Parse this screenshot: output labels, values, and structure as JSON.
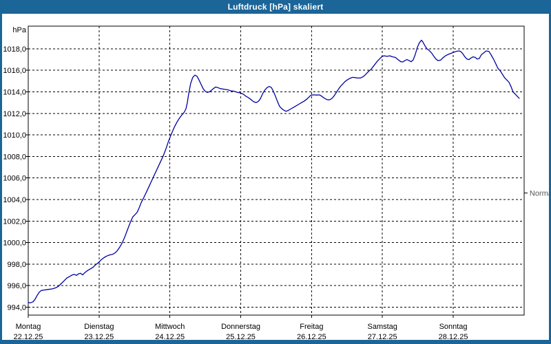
{
  "window": {
    "title": "Luftdruck [hPa] skaliert"
  },
  "colors": {
    "chrome": "#1B6598",
    "plot_bg": "#FFFFFF",
    "line": "#0000A0",
    "grid": "#000000",
    "frame": "#000000",
    "text": "#000000",
    "normal_text": "#555555"
  },
  "chart_data": {
    "type": "line",
    "title": "Luftdruck [hPa] skaliert",
    "y_unit_label": "hPa",
    "x_unit": "days since Montag 22.12.25 00:00",
    "ylim": [
      993.3,
      1020.3
    ],
    "x_range_days": [
      0,
      7
    ],
    "grid": true,
    "y_ticks": [
      {
        "v": 994,
        "label": "994,0"
      },
      {
        "v": 996,
        "label": "996,0"
      },
      {
        "v": 998,
        "label": "998,0"
      },
      {
        "v": 1000,
        "label": "1000,0"
      },
      {
        "v": 1002,
        "label": "1002,0"
      },
      {
        "v": 1004,
        "label": "1004,0"
      },
      {
        "v": 1006,
        "label": "1006,0"
      },
      {
        "v": 1008,
        "label": "1008,0"
      },
      {
        "v": 1010,
        "label": "1010,0"
      },
      {
        "v": 1012,
        "label": "1012,0"
      },
      {
        "v": 1014,
        "label": "1014,0"
      },
      {
        "v": 1016,
        "label": "1016,0"
      },
      {
        "v": 1018,
        "label": "1018,0"
      }
    ],
    "x_ticks": [
      {
        "day": "Montag",
        "date": "22.12.25"
      },
      {
        "day": "Dienstag",
        "date": "23.12.25"
      },
      {
        "day": "Mittwoch",
        "date": "24.12.25"
      },
      {
        "day": "Donnerstag",
        "date": "25.12.25"
      },
      {
        "day": "Freitag",
        "date": "26.12.25"
      },
      {
        "day": "Samstag",
        "date": "27.12.25"
      },
      {
        "day": "Sonntag",
        "date": "28.12.25"
      }
    ],
    "normal_marker": {
      "label": "Normal",
      "value_hpa": 1004.6,
      "side": "right"
    },
    "series": [
      {
        "name": "Luftdruck",
        "color": "#0000A0",
        "points": [
          [
            0.0,
            994.45
          ],
          [
            0.029,
            994.4
          ],
          [
            0.068,
            994.5
          ],
          [
            0.097,
            994.75
          ],
          [
            0.126,
            995.1
          ],
          [
            0.156,
            995.4
          ],
          [
            0.185,
            995.55
          ],
          [
            0.224,
            995.6
          ],
          [
            0.282,
            995.65
          ],
          [
            0.34,
            995.7
          ],
          [
            0.389,
            995.8
          ],
          [
            0.428,
            995.95
          ],
          [
            0.467,
            996.2
          ],
          [
            0.506,
            996.45
          ],
          [
            0.544,
            996.7
          ],
          [
            0.583,
            996.85
          ],
          [
            0.622,
            997.0
          ],
          [
            0.651,
            997.05
          ],
          [
            0.681,
            996.95
          ],
          [
            0.71,
            997.1
          ],
          [
            0.739,
            997.15
          ],
          [
            0.768,
            997.0
          ],
          [
            0.797,
            997.2
          ],
          [
            0.836,
            997.4
          ],
          [
            0.875,
            997.55
          ],
          [
            0.914,
            997.7
          ],
          [
            0.953,
            997.95
          ],
          [
            0.992,
            998.15
          ],
          [
            1.031,
            998.4
          ],
          [
            1.069,
            998.6
          ],
          [
            1.108,
            998.75
          ],
          [
            1.147,
            998.85
          ],
          [
            1.186,
            998.9
          ],
          [
            1.215,
            999.0
          ],
          [
            1.245,
            999.15
          ],
          [
            1.274,
            999.4
          ],
          [
            1.303,
            999.7
          ],
          [
            1.332,
            1000.05
          ],
          [
            1.361,
            1000.5
          ],
          [
            1.39,
            1001.0
          ],
          [
            1.419,
            1001.5
          ],
          [
            1.449,
            1002.0
          ],
          [
            1.478,
            1002.4
          ],
          [
            1.507,
            1002.6
          ],
          [
            1.536,
            1002.8
          ],
          [
            1.565,
            1003.2
          ],
          [
            1.594,
            1003.7
          ],
          [
            1.633,
            1004.2
          ],
          [
            1.672,
            1004.75
          ],
          [
            1.711,
            1005.3
          ],
          [
            1.75,
            1005.85
          ],
          [
            1.789,
            1006.4
          ],
          [
            1.828,
            1006.95
          ],
          [
            1.867,
            1007.5
          ],
          [
            1.906,
            1008.05
          ],
          [
            1.944,
            1008.7
          ],
          [
            1.983,
            1009.45
          ],
          [
            2.022,
            1010.1
          ],
          [
            2.061,
            1010.7
          ],
          [
            2.1,
            1011.2
          ],
          [
            2.139,
            1011.6
          ],
          [
            2.168,
            1011.85
          ],
          [
            2.197,
            1012.05
          ],
          [
            2.226,
            1012.4
          ],
          [
            2.246,
            1013.0
          ],
          [
            2.265,
            1013.8
          ],
          [
            2.294,
            1014.8
          ],
          [
            2.323,
            1015.35
          ],
          [
            2.353,
            1015.55
          ],
          [
            2.382,
            1015.45
          ],
          [
            2.411,
            1015.1
          ],
          [
            2.44,
            1014.7
          ],
          [
            2.469,
            1014.3
          ],
          [
            2.498,
            1014.05
          ],
          [
            2.528,
            1013.95
          ],
          [
            2.557,
            1014.0
          ],
          [
            2.586,
            1014.15
          ],
          [
            2.615,
            1014.3
          ],
          [
            2.644,
            1014.45
          ],
          [
            2.673,
            1014.4
          ],
          [
            2.712,
            1014.3
          ],
          [
            2.761,
            1014.25
          ],
          [
            2.81,
            1014.2
          ],
          [
            2.858,
            1014.1
          ],
          [
            2.907,
            1014.05
          ],
          [
            2.955,
            1013.95
          ],
          [
            2.994,
            1013.9
          ],
          [
            3.033,
            1013.8
          ],
          [
            3.072,
            1013.6
          ],
          [
            3.111,
            1013.45
          ],
          [
            3.15,
            1013.25
          ],
          [
            3.179,
            1013.1
          ],
          [
            3.218,
            1013.0
          ],
          [
            3.247,
            1013.1
          ],
          [
            3.276,
            1013.35
          ],
          [
            3.315,
            1013.9
          ],
          [
            3.344,
            1014.2
          ],
          [
            3.373,
            1014.4
          ],
          [
            3.403,
            1014.5
          ],
          [
            3.432,
            1014.4
          ],
          [
            3.461,
            1014.05
          ],
          [
            3.49,
            1013.6
          ],
          [
            3.519,
            1013.1
          ],
          [
            3.548,
            1012.65
          ],
          [
            3.577,
            1012.45
          ],
          [
            3.607,
            1012.3
          ],
          [
            3.636,
            1012.2
          ],
          [
            3.665,
            1012.25
          ],
          [
            3.704,
            1012.4
          ],
          [
            3.743,
            1012.55
          ],
          [
            3.782,
            1012.7
          ],
          [
            3.82,
            1012.85
          ],
          [
            3.859,
            1013.0
          ],
          [
            3.898,
            1013.15
          ],
          [
            3.937,
            1013.35
          ],
          [
            3.976,
            1013.6
          ],
          [
            3.996,
            1013.7
          ],
          [
            4.035,
            1013.72
          ],
          [
            4.073,
            1013.7
          ],
          [
            4.112,
            1013.72
          ],
          [
            4.142,
            1013.6
          ],
          [
            4.171,
            1013.45
          ],
          [
            4.21,
            1013.3
          ],
          [
            4.239,
            1013.25
          ],
          [
            4.268,
            1013.3
          ],
          [
            4.297,
            1013.45
          ],
          [
            4.326,
            1013.7
          ],
          [
            4.355,
            1014.0
          ],
          [
            4.385,
            1014.3
          ],
          [
            4.414,
            1014.55
          ],
          [
            4.443,
            1014.75
          ],
          [
            4.472,
            1014.95
          ],
          [
            4.501,
            1015.1
          ],
          [
            4.54,
            1015.25
          ],
          [
            4.579,
            1015.35
          ],
          [
            4.618,
            1015.32
          ],
          [
            4.657,
            1015.28
          ],
          [
            4.696,
            1015.3
          ],
          [
            4.725,
            1015.4
          ],
          [
            4.754,
            1015.55
          ],
          [
            4.783,
            1015.75
          ],
          [
            4.812,
            1015.95
          ],
          [
            4.841,
            1016.1
          ],
          [
            4.871,
            1016.35
          ],
          [
            4.9,
            1016.6
          ],
          [
            4.929,
            1016.85
          ],
          [
            4.958,
            1017.05
          ],
          [
            4.997,
            1017.3
          ],
          [
            5.026,
            1017.35
          ],
          [
            5.065,
            1017.3
          ],
          [
            5.104,
            1017.35
          ],
          [
            5.143,
            1017.25
          ],
          [
            5.182,
            1017.2
          ],
          [
            5.22,
            1017.0
          ],
          [
            5.259,
            1016.8
          ],
          [
            5.289,
            1016.78
          ],
          [
            5.318,
            1016.9
          ],
          [
            5.347,
            1017.0
          ],
          [
            5.376,
            1016.9
          ],
          [
            5.405,
            1016.8
          ],
          [
            5.434,
            1016.95
          ],
          [
            5.463,
            1017.45
          ],
          [
            5.492,
            1018.1
          ],
          [
            5.521,
            1018.55
          ],
          [
            5.551,
            1018.8
          ],
          [
            5.57,
            1018.65
          ],
          [
            5.599,
            1018.3
          ],
          [
            5.628,
            1018.0
          ],
          [
            5.658,
            1017.85
          ],
          [
            5.696,
            1017.6
          ],
          [
            5.726,
            1017.3
          ],
          [
            5.755,
            1017.05
          ],
          [
            5.784,
            1016.9
          ],
          [
            5.823,
            1016.95
          ],
          [
            5.852,
            1017.15
          ],
          [
            5.891,
            1017.35
          ],
          [
            5.92,
            1017.45
          ],
          [
            5.959,
            1017.55
          ],
          [
            5.998,
            1017.65
          ],
          [
            6.037,
            1017.75
          ],
          [
            6.076,
            1017.8
          ],
          [
            6.105,
            1017.75
          ],
          [
            6.134,
            1017.55
          ],
          [
            6.164,
            1017.25
          ],
          [
            6.193,
            1017.05
          ],
          [
            6.222,
            1017.0
          ],
          [
            6.251,
            1017.15
          ],
          [
            6.28,
            1017.25
          ],
          [
            6.309,
            1017.2
          ],
          [
            6.339,
            1017.05
          ],
          [
            6.368,
            1017.1
          ],
          [
            6.397,
            1017.45
          ],
          [
            6.436,
            1017.65
          ],
          [
            6.465,
            1017.8
          ],
          [
            6.504,
            1017.75
          ],
          [
            6.533,
            1017.45
          ],
          [
            6.572,
            1017.0
          ],
          [
            6.601,
            1016.6
          ],
          [
            6.63,
            1016.2
          ],
          [
            6.669,
            1015.9
          ],
          [
            6.698,
            1015.6
          ],
          [
            6.727,
            1015.3
          ],
          [
            6.757,
            1015.1
          ],
          [
            6.786,
            1014.9
          ],
          [
            6.815,
            1014.5
          ],
          [
            6.844,
            1014.0
          ],
          [
            6.873,
            1013.8
          ],
          [
            6.903,
            1013.6
          ],
          [
            6.932,
            1013.4
          ]
        ]
      }
    ]
  }
}
